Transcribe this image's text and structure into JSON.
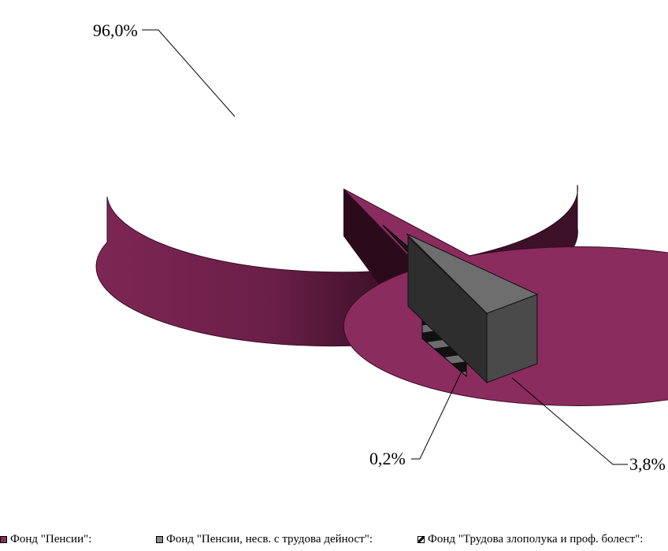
{
  "chart_data": {
    "type": "pie",
    "title": "",
    "three_d": true,
    "exploded": true,
    "slices": [
      {
        "label": "Фонд \"Пенсии\":",
        "value": 96.0,
        "value_label": "96,0%",
        "color": "#8b2c5e"
      },
      {
        "label": "Фонд \"Пенсии, несв. с трудова дейност\":",
        "value": 3.8,
        "value_label": "3,8%",
        "color": "#5a5a5a"
      },
      {
        "label": "Фонд \"Трудова злополука и проф. болест\":",
        "value": 0.2,
        "value_label": "0,2%",
        "color": "#1a1a1a"
      }
    ],
    "legend_position": "bottom"
  }
}
